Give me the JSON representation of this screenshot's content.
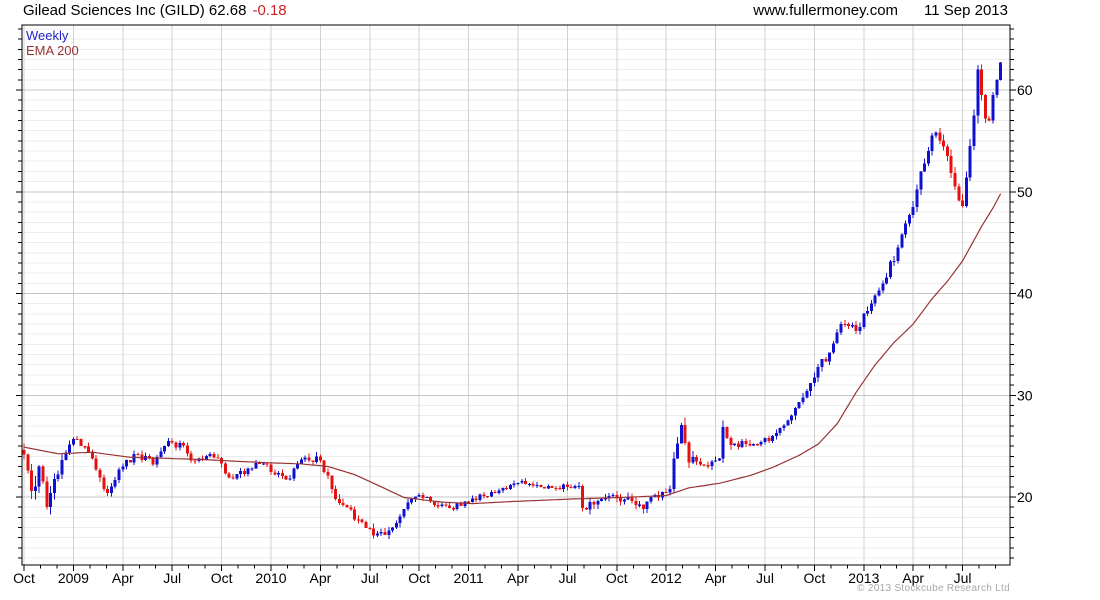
{
  "header": {
    "title": "Gilead Sciences Inc (GILD) 62.68",
    "change": "-0.18",
    "site": "www.fullermoney.com",
    "date": "11 Sep 2013"
  },
  "legend": {
    "series_label": "Weekly",
    "overlay_label": "EMA 200"
  },
  "footer": {
    "copyright": "© 2013 Stockcube Research Ltd"
  },
  "colors": {
    "up": "#1010d0",
    "down": "#e41111",
    "ema": "#993333",
    "change_text": "#cc2222",
    "weekly_text": "#2222cc",
    "grid_minor": "#ededed",
    "grid_major": "#c4c4c4",
    "grid_vertical": "#d2d2d2",
    "axis": "#000000",
    "copyright_text": "#a8a8a8"
  },
  "chart_data": {
    "type": "candlestick",
    "timeframe": "weekly",
    "title": "Gilead Sciences Inc (GILD)",
    "last": {
      "close": 62.68,
      "change": -0.18,
      "date": "11 Sep 2013"
    },
    "weeks_total": 258,
    "seed": 20130911,
    "x_axis": {
      "labels": [
        "Oct",
        "2009",
        "Apr",
        "Jul",
        "Oct",
        "2010",
        "Apr",
        "Jul",
        "Oct",
        "2011",
        "Apr",
        "Jul",
        "Oct",
        "2012",
        "Apr",
        "Jul",
        "Oct",
        "2013",
        "Apr",
        "Jul"
      ],
      "weeks_per_label": 13,
      "minor_ticks": "monthly",
      "start": "Oct 2008",
      "end": "Sep 2013"
    },
    "y_axis": {
      "side": "right",
      "major_ticks": [
        20,
        30,
        40,
        50,
        60
      ],
      "minor_step": 1,
      "top_value": 66.4,
      "bottom_value": 13.3
    },
    "series": [
      {
        "name": "Weekly",
        "type": "candlestick",
        "first_open": 24.6,
        "close_keyframes": [
          [
            0,
            24.2,
            1.4
          ],
          [
            2,
            20.6,
            2.0
          ],
          [
            4,
            23.0,
            2.2
          ],
          [
            6,
            19.0,
            1.8
          ],
          [
            9,
            22.2,
            1.3
          ],
          [
            13,
            25.7,
            1.0
          ],
          [
            17,
            24.4,
            0.8
          ],
          [
            22,
            20.4,
            0.9
          ],
          [
            26,
            23.0,
            0.8
          ],
          [
            30,
            24.2,
            0.8
          ],
          [
            34,
            23.2,
            0.8
          ],
          [
            37,
            25.0,
            0.9
          ],
          [
            41,
            25.3,
            0.8
          ],
          [
            44,
            23.6,
            0.7
          ],
          [
            50,
            23.9,
            0.8
          ],
          [
            55,
            21.8,
            0.8
          ],
          [
            59,
            22.8,
            0.7
          ],
          [
            63,
            23.3,
            0.7
          ],
          [
            69,
            21.7,
            0.8
          ],
          [
            74,
            23.9,
            0.7
          ],
          [
            78,
            23.6,
            0.9
          ],
          [
            81,
            20.8,
            1.2
          ],
          [
            84,
            19.2,
            1.0
          ],
          [
            88,
            17.8,
            0.9
          ],
          [
            93,
            16.4,
            1.1
          ],
          [
            97,
            17.0,
            0.9
          ],
          [
            100,
            18.8,
            0.8
          ],
          [
            104,
            20.2,
            0.7
          ],
          [
            108,
            19.2,
            0.6
          ],
          [
            112,
            18.9,
            0.6
          ],
          [
            117,
            19.5,
            0.6
          ],
          [
            121,
            20.1,
            0.6
          ],
          [
            126,
            20.9,
            0.6
          ],
          [
            130,
            21.4,
            0.6
          ],
          [
            135,
            21.2,
            0.6
          ],
          [
            139,
            20.9,
            0.6
          ],
          [
            143,
            21.0,
            0.7
          ],
          [
            146,
            21.1,
            0.8
          ],
          [
            147,
            18.9,
            1.2
          ],
          [
            151,
            19.6,
            0.9
          ],
          [
            156,
            19.9,
            0.9
          ],
          [
            160,
            19.6,
            0.9
          ],
          [
            163,
            18.8,
            1.1
          ],
          [
            165,
            20.0,
            0.8
          ],
          [
            168,
            20.5,
            0.8
          ],
          [
            170,
            20.8,
            1.0
          ],
          [
            171,
            23.8,
            1.4
          ],
          [
            173,
            27.1,
            1.6
          ],
          [
            175,
            23.4,
            1.6
          ],
          [
            178,
            23.2,
            0.9
          ],
          [
            182,
            23.6,
            0.9
          ],
          [
            183,
            23.8,
            1.0
          ],
          [
            184,
            26.9,
            1.5
          ],
          [
            186,
            25.1,
            1.1
          ],
          [
            190,
            25.2,
            0.8
          ],
          [
            194,
            25.4,
            0.8
          ],
          [
            198,
            26.3,
            0.8
          ],
          [
            202,
            28.0,
            0.9
          ],
          [
            205,
            29.8,
            1.0
          ],
          [
            209,
            32.8,
            1.1
          ],
          [
            212,
            34.2,
            1.0
          ],
          [
            215,
            37.0,
            0.9
          ],
          [
            219,
            36.3,
            0.9
          ],
          [
            222,
            38.3,
            0.8
          ],
          [
            226,
            41.0,
            0.9
          ],
          [
            230,
            44.5,
            1.0
          ],
          [
            234,
            48.5,
            1.2
          ],
          [
            236,
            52.0,
            1.4
          ],
          [
            238,
            54.0,
            1.4
          ],
          [
            240,
            55.8,
            1.8
          ],
          [
            243,
            53.5,
            1.4
          ],
          [
            245,
            50.5,
            1.5
          ],
          [
            247,
            48.6,
            1.7
          ],
          [
            249,
            54.5,
            1.5
          ],
          [
            250,
            57.5,
            1.4
          ],
          [
            251,
            62.0,
            2.2
          ],
          [
            252,
            59.5,
            1.3
          ],
          [
            253,
            57.2,
            1.2
          ],
          [
            254,
            57.0,
            1.1
          ],
          [
            255,
            59.5,
            1.2
          ],
          [
            256,
            61.0,
            1.1
          ],
          [
            257,
            62.68,
            1.0
          ]
        ]
      },
      {
        "name": "EMA 200",
        "type": "line",
        "points": [
          [
            0,
            24.9
          ],
          [
            9,
            24.25
          ],
          [
            18,
            24.4
          ],
          [
            28,
            23.9
          ],
          [
            46,
            23.7
          ],
          [
            62,
            23.4
          ],
          [
            73,
            23.25
          ],
          [
            80,
            23.0
          ],
          [
            87,
            22.2
          ],
          [
            94,
            21.0
          ],
          [
            100,
            19.95
          ],
          [
            110,
            19.5
          ],
          [
            118,
            19.35
          ],
          [
            128,
            19.55
          ],
          [
            144,
            19.8
          ],
          [
            157,
            19.95
          ],
          [
            169,
            20.15
          ],
          [
            175,
            20.9
          ],
          [
            183,
            21.35
          ],
          [
            191,
            22.1
          ],
          [
            197,
            22.9
          ],
          [
            204,
            24.1
          ],
          [
            209,
            25.2
          ],
          [
            214,
            27.2
          ],
          [
            219,
            30.3
          ],
          [
            224,
            33.0
          ],
          [
            229,
            35.2
          ],
          [
            234,
            37.0
          ],
          [
            239,
            39.5
          ],
          [
            243,
            41.2
          ],
          [
            247,
            43.2
          ],
          [
            252,
            46.6
          ],
          [
            255,
            48.4
          ],
          [
            257,
            49.8
          ]
        ]
      }
    ]
  }
}
